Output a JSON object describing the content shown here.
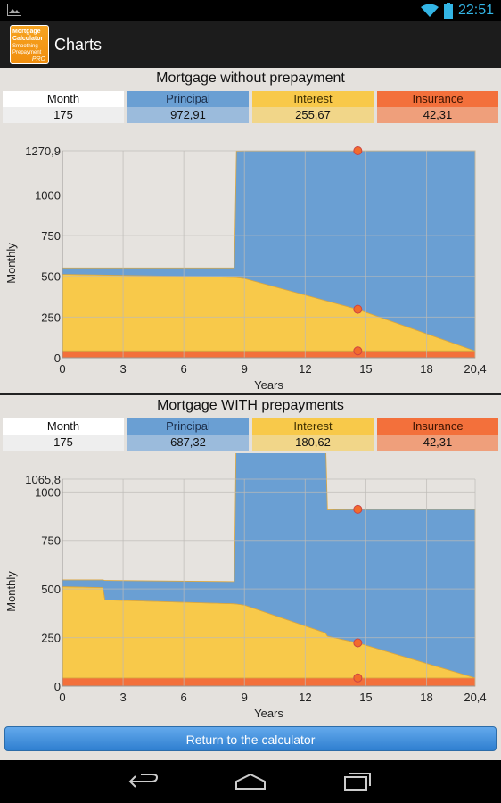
{
  "status_bar": {
    "time": "22:51"
  },
  "action_bar": {
    "title": "Charts",
    "icon_lines": [
      "Mortgage",
      "Calculator",
      "Smoothing",
      "Prepayment",
      "PRO"
    ]
  },
  "legend_labels": {
    "month": "Month",
    "principal": "Principal",
    "interest": "Interest",
    "insurance": "Insurance"
  },
  "colors": {
    "principal": "#6a9fd3",
    "interest": "#f8c94a",
    "insurance": "#f3703b",
    "marker": "#f26b2c"
  },
  "sections": [
    {
      "title": "Mortgage without prepayment",
      "values": {
        "month": "175",
        "principal": "972,91",
        "interest": "255,67",
        "insurance": "42,31"
      }
    },
    {
      "title": "Mortgage WITH prepayments",
      "values": {
        "month": "175",
        "principal": "687,32",
        "interest": "180,62",
        "insurance": "42,31"
      }
    }
  ],
  "chart_data": [
    {
      "type": "area",
      "title": "Mortgage without prepayment",
      "xlabel": "Years",
      "ylabel": "Monthly",
      "xlim": [
        0,
        20.4
      ],
      "ylim": [
        0,
        1270.9
      ],
      "x_ticks": [
        "0",
        "3",
        "6",
        "9",
        "12",
        "15",
        "18",
        "20,4"
      ],
      "x_tick_values": [
        0,
        3,
        6,
        9,
        12,
        15,
        18,
        20.4
      ],
      "y_ticks": [
        "0",
        "250",
        "500",
        "750",
        "1000",
        "1270,9"
      ],
      "y_tick_values": [
        0,
        250,
        500,
        750,
        1000,
        1270.9
      ],
      "grid": true,
      "stacked": true,
      "series": [
        {
          "name": "Insurance",
          "color": "#f3703b",
          "x": [
            0,
            8.5,
            8.5,
            20.4
          ],
          "values": [
            42,
            42,
            42,
            42
          ]
        },
        {
          "name": "Interest",
          "color": "#f8c94a",
          "x": [
            0,
            8.5,
            9,
            14.6,
            20.4
          ],
          "values": [
            470,
            452,
            445,
            255,
            0
          ]
        },
        {
          "name": "Principal",
          "color": "#6a9fd3",
          "x": [
            0,
            8.5,
            8.6,
            9,
            14.6,
            20.4
          ],
          "values": [
            40,
            58,
            776,
            783,
            973,
            1229
          ]
        }
      ],
      "markers": {
        "x": 14.6,
        "values": [
          42.31,
          297.98,
          1270.9
        ]
      }
    },
    {
      "type": "area",
      "title": "Mortgage WITH prepayments",
      "xlabel": "Years",
      "ylabel": "Monthly",
      "xlim": [
        0,
        20.4
      ],
      "ylim": [
        0,
        1065.8
      ],
      "x_ticks": [
        "0",
        "3",
        "6",
        "9",
        "12",
        "15",
        "18",
        "20,4"
      ],
      "x_tick_values": [
        0,
        3,
        6,
        9,
        12,
        15,
        18,
        20.4
      ],
      "y_ticks": [
        "0",
        "250",
        "500",
        "750",
        "1000",
        "1065,8"
      ],
      "y_tick_values": [
        0,
        250,
        500,
        750,
        1000,
        1065.8
      ],
      "grid": true,
      "stacked": true,
      "series": [
        {
          "name": "Insurance",
          "color": "#f3703b",
          "x": [
            0,
            20.4
          ],
          "values": [
            42,
            42
          ]
        },
        {
          "name": "Interest",
          "color": "#f8c94a",
          "x": [
            0,
            2.0,
            2.1,
            8.5,
            9,
            13.0,
            13.1,
            14.6,
            20.4
          ],
          "values": [
            470,
            465,
            402,
            382,
            375,
            232,
            215,
            181,
            0
          ]
        },
        {
          "name": "Principal",
          "color": "#6a9fd3",
          "x": [
            0,
            2.0,
            2.1,
            8.5,
            8.6,
            9,
            13.0,
            13.1,
            14.6,
            20.4
          ],
          "values": [
            35,
            40,
            100,
            114,
            980,
            987,
            1024,
            650,
            687,
            868
          ]
        }
      ],
      "markers": {
        "x": 14.6,
        "values": [
          42.31,
          222.93,
          910.25
        ]
      }
    }
  ],
  "footer": {
    "return_button": "Return to the calculator"
  }
}
